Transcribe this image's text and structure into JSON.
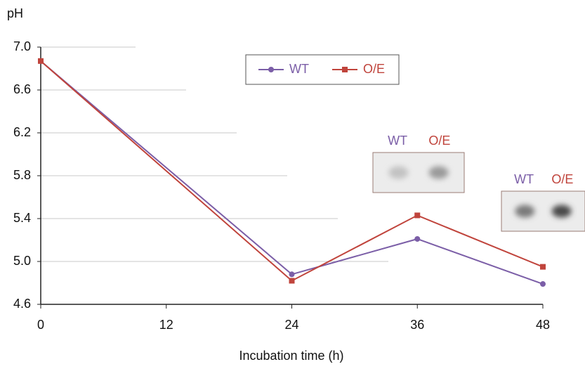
{
  "chart_data": {
    "type": "line",
    "y_label": "pH",
    "x_label": "Incubation time (h)",
    "x": [
      0,
      24,
      36,
      48
    ],
    "series": [
      {
        "name": "WT",
        "color": "#7b5ea7",
        "values": [
          6.87,
          4.88,
          5.21,
          4.79
        ]
      },
      {
        "name": "O/E",
        "color": "#c0443c",
        "values": [
          6.87,
          4.82,
          5.43,
          4.95
        ]
      }
    ],
    "xlim": [
      0,
      48
    ],
    "xticks": [
      0,
      12,
      24,
      36,
      48
    ],
    "ylim": [
      4.6,
      7.0
    ],
    "yticks": [
      4.6,
      {
        "value": 5,
        "label": "5.0"
      },
      5.4,
      5.8,
      6.2,
      6.6,
      {
        "value": 7,
        "label": "7.0"
      }
    ],
    "grid": true,
    "insets": [
      {
        "labels": [
          "WT",
          "O/E"
        ]
      },
      {
        "labels": [
          "WT",
          "O/E"
        ]
      }
    ]
  }
}
